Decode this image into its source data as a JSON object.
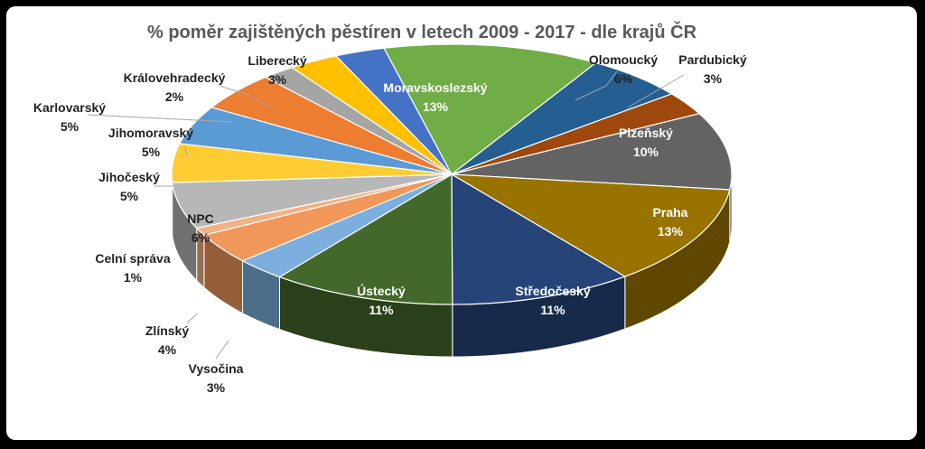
{
  "chart_data": {
    "type": "pie",
    "title": "% poměr zajištěných pěstíren v letech 2009 - 2017 - dle krajů ČR",
    "slices": [
      {
        "name": "Moravskoslezský",
        "value": 13,
        "label": "13%",
        "color": "#70AD47"
      },
      {
        "name": "Olomoucký",
        "value": 6,
        "label": "6%",
        "color": "#255E91"
      },
      {
        "name": "Pardubický",
        "value": 3,
        "label": "3%",
        "color": "#9E480E"
      },
      {
        "name": "Plzeňský",
        "value": 10,
        "label": "10%",
        "color": "#636363"
      },
      {
        "name": "Praha",
        "value": 13,
        "label": "13%",
        "color": "#997300"
      },
      {
        "name": "Středočeský",
        "value": 11,
        "label": "11%",
        "color": "#264478"
      },
      {
        "name": "Ústecký",
        "value": 11,
        "label": "11%",
        "color": "#43682B"
      },
      {
        "name": "Vysočina",
        "value": 3,
        "label": "3%",
        "color": "#7CAFDD"
      },
      {
        "name": "Zlínský",
        "value": 4,
        "label": "4%",
        "color": "#F1975A"
      },
      {
        "name": "Celní správa",
        "value": 1,
        "label": "1%",
        "color": "#F4B183"
      },
      {
        "name": "NPC",
        "value": 6,
        "label": "6%",
        "color": "#B7B7B7"
      },
      {
        "name": "Jihočeský",
        "value": 5,
        "label": "5%",
        "color": "#FFCD33"
      },
      {
        "name": "Jihomoravský",
        "value": 5,
        "label": "5%",
        "color": "#5B9BD5"
      },
      {
        "name": "Karlovarský",
        "value": 5,
        "label": "5%",
        "color": "#ED7D31"
      },
      {
        "name": "Královehradecký",
        "value": 2,
        "label": "2%",
        "color": "#A5A5A5"
      },
      {
        "name": "Liberecký",
        "value": 3,
        "label": "3%",
        "color": "#FFC000"
      },
      {
        "name": "",
        "value": 3,
        "label": "",
        "color": "#4472C4"
      }
    ],
    "legend": "none",
    "style": "3d-tilted"
  }
}
